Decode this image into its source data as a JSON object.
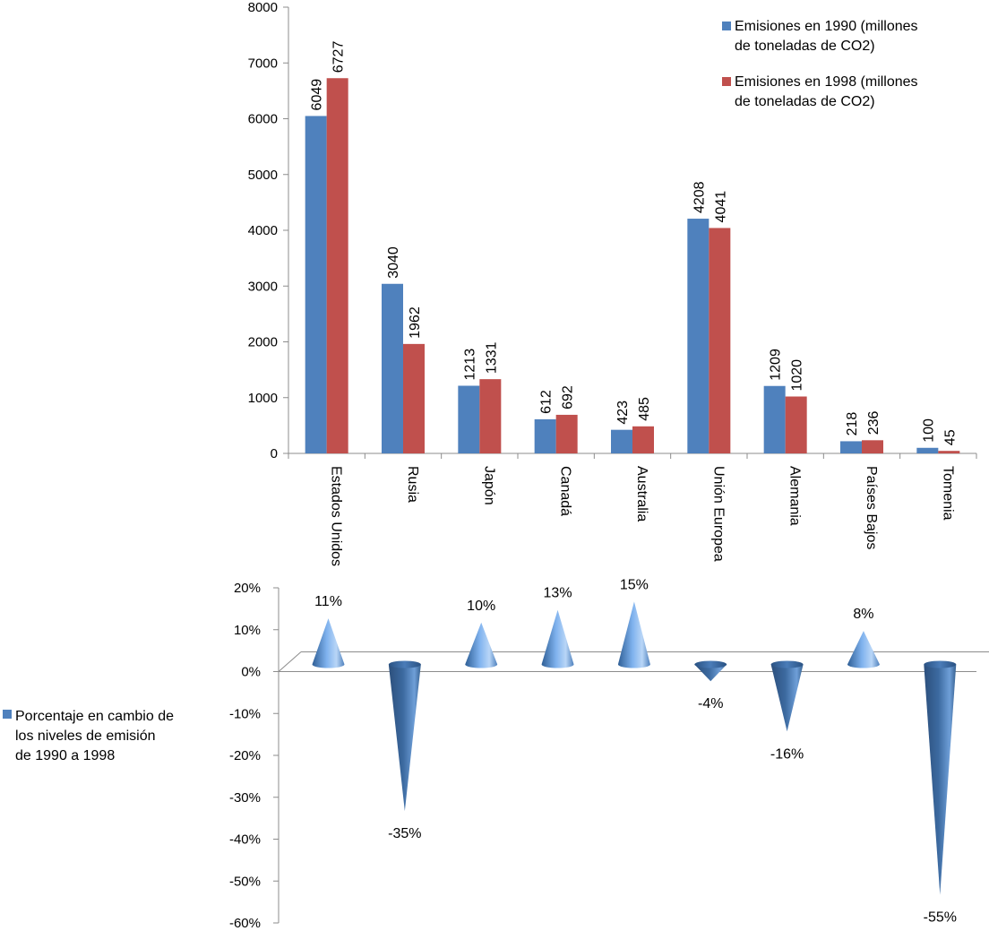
{
  "chart_data": [
    {
      "type": "bar",
      "categories": [
        "Estados Unidos",
        "Rusia",
        "Japón",
        "Canadá",
        "Australia",
        "Unión Europea",
        "Alemania",
        "Países Bajos",
        "Tomenia"
      ],
      "series": [
        {
          "name": "Emisiones en 1990 (millones de toneladas de CO2)",
          "color": "#4F81BD",
          "values": [
            6049,
            3040,
            1213,
            612,
            423,
            4208,
            1209,
            218,
            100
          ]
        },
        {
          "name": "Emisiones en 1998 (millones de toneladas de CO2)",
          "color": "#C0504D",
          "values": [
            6727,
            1962,
            1331,
            692,
            485,
            4041,
            1020,
            236,
            45
          ]
        }
      ],
      "ylim": [
        0,
        8000
      ],
      "yticks": [
        0,
        1000,
        2000,
        3000,
        4000,
        5000,
        6000,
        7000,
        8000
      ],
      "data_labels": true,
      "legend_position": "top-right",
      "grid": false
    },
    {
      "type": "bar",
      "bar_shape": "cone",
      "categories": [
        "Estados Unidos",
        "Rusia",
        "Japón",
        "Canadá",
        "Australia",
        "Unión Europea",
        "Alemania",
        "Países Bajos",
        "Tomenia"
      ],
      "series": [
        {
          "name": "Porcentaje en cambio de los niveles de emisión de 1990 a 1998",
          "color": "#4F81BD",
          "values": [
            11,
            -35,
            10,
            13,
            15,
            -4,
            -16,
            8,
            -55
          ],
          "labels": [
            "11%",
            "-35%",
            "10%",
            "13%",
            "15%",
            "-4%",
            "-16%",
            "8%",
            "-55%"
          ]
        }
      ],
      "ylim": [
        -60,
        20
      ],
      "yticks": [
        20,
        10,
        0,
        -10,
        -20,
        -30,
        -40,
        -50,
        -60
      ],
      "ytick_labels": [
        "20%",
        "10%",
        "0%",
        "-10%",
        "-20%",
        "-30%",
        "-40%",
        "-50%",
        "-60%"
      ],
      "data_labels": true,
      "legend_position": "left",
      "grid": false
    }
  ]
}
